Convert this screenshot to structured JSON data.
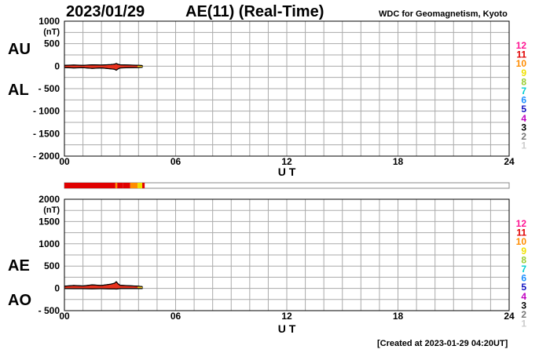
{
  "header": {
    "date": "2023/01/29",
    "title": "AE(11) (Real-Time)",
    "source": "WDC for Geomagnetism, Kyoto"
  },
  "footer": {
    "created": "[Created at 2023-01-29 04:20UT]"
  },
  "colors": {
    "grid": "#aaaaaa",
    "frame": "#000000",
    "au_al_fill": "#e8321e",
    "recent_fill": "#f5c21b",
    "station_bar_bg": "#ffffff"
  },
  "station_legend": [
    {
      "label": "12",
      "color": "#ff1493"
    },
    {
      "label": "11",
      "color": "#e00000"
    },
    {
      "label": "10",
      "color": "#ff8c00"
    },
    {
      "label": "9",
      "color": "#f0e000"
    },
    {
      "label": "8",
      "color": "#9acd32"
    },
    {
      "label": "7",
      "color": "#00ced1"
    },
    {
      "label": "6",
      "color": "#1e90ff"
    },
    {
      "label": "5",
      "color": "#1010c0"
    },
    {
      "label": "4",
      "color": "#c000c0"
    },
    {
      "label": "3",
      "color": "#000000"
    },
    {
      "label": "2",
      "color": "#777777"
    },
    {
      "label": "1",
      "color": "#cccccc"
    }
  ],
  "station_bar": {
    "segments": [
      {
        "start": 0.0,
        "end": 2.75,
        "stations": 11
      },
      {
        "start": 2.75,
        "end": 2.85,
        "stations": 10
      },
      {
        "start": 2.85,
        "end": 3.15,
        "stations": 11
      },
      {
        "start": 3.15,
        "end": 3.55,
        "stations": 11
      },
      {
        "start": 3.55,
        "end": 3.95,
        "stations": 10
      },
      {
        "start": 3.95,
        "end": 4.2,
        "stations": 9
      },
      {
        "start": 4.2,
        "end": 4.33,
        "stations": 11
      }
    ]
  },
  "chart_data": [
    {
      "type": "area",
      "name": "AU/AL",
      "side_labels": [
        "AU",
        "AL"
      ],
      "ylabel": "(nT)",
      "xlabel": "U T",
      "xlim": [
        0,
        24
      ],
      "ylim": [
        -2000,
        1000
      ],
      "x_ticks": [
        "00",
        "06",
        "12",
        "18",
        "24"
      ],
      "x_tick_values": [
        0,
        6,
        12,
        18,
        24
      ],
      "y_ticks": [
        1000,
        500,
        0,
        -500,
        -1000,
        -1500,
        -2000
      ],
      "y_tick_labels": [
        "1000",
        "500",
        "0",
        "- 500",
        "- 1000",
        "- 1500",
        "- 2000"
      ],
      "grid": true,
      "series": [
        {
          "role": "upper",
          "x": [
            0,
            0.5,
            1.0,
            1.5,
            2.0,
            2.5,
            2.7,
            2.8,
            2.9,
            3.0,
            3.5,
            4.0,
            4.2
          ],
          "values": [
            20,
            25,
            20,
            30,
            25,
            35,
            45,
            60,
            40,
            30,
            25,
            20,
            15
          ]
        },
        {
          "role": "lower",
          "x": [
            0,
            0.5,
            1.0,
            1.5,
            2.0,
            2.5,
            2.7,
            2.8,
            2.9,
            3.0,
            3.5,
            4.0,
            4.2
          ],
          "values": [
            -30,
            -40,
            -35,
            -50,
            -40,
            -60,
            -70,
            -90,
            -60,
            -40,
            -35,
            -30,
            -25
          ]
        }
      ]
    },
    {
      "type": "area",
      "name": "AE/AO",
      "side_labels": [
        "AE",
        "AO"
      ],
      "ylabel": "(nT)",
      "xlabel": "U T",
      "xlim": [
        0,
        24
      ],
      "ylim": [
        -500,
        2000
      ],
      "x_ticks": [
        "00",
        "06",
        "12",
        "18",
        "24"
      ],
      "x_tick_values": [
        0,
        6,
        12,
        18,
        24
      ],
      "y_ticks": [
        2000,
        1500,
        1000,
        500,
        0,
        -500
      ],
      "y_tick_labels": [
        "2000",
        "1500",
        "1000",
        "500",
        "0",
        "- 500"
      ],
      "grid": true,
      "series": [
        {
          "role": "AE",
          "x": [
            0,
            0.5,
            1.0,
            1.5,
            2.0,
            2.5,
            2.7,
            2.8,
            2.9,
            3.0,
            3.5,
            4.0,
            4.2
          ],
          "values": [
            50,
            65,
            55,
            80,
            65,
            95,
            115,
            150,
            100,
            70,
            60,
            50,
            40
          ]
        },
        {
          "role": "AO",
          "x": [
            0,
            0.5,
            1.0,
            1.5,
            2.0,
            2.5,
            2.7,
            2.8,
            2.9,
            3.0,
            3.5,
            4.0,
            4.2
          ],
          "values": [
            -5,
            -7,
            -7,
            -10,
            -7,
            -12,
            -12,
            -15,
            -10,
            -5,
            -5,
            -5,
            -5
          ]
        }
      ]
    }
  ]
}
